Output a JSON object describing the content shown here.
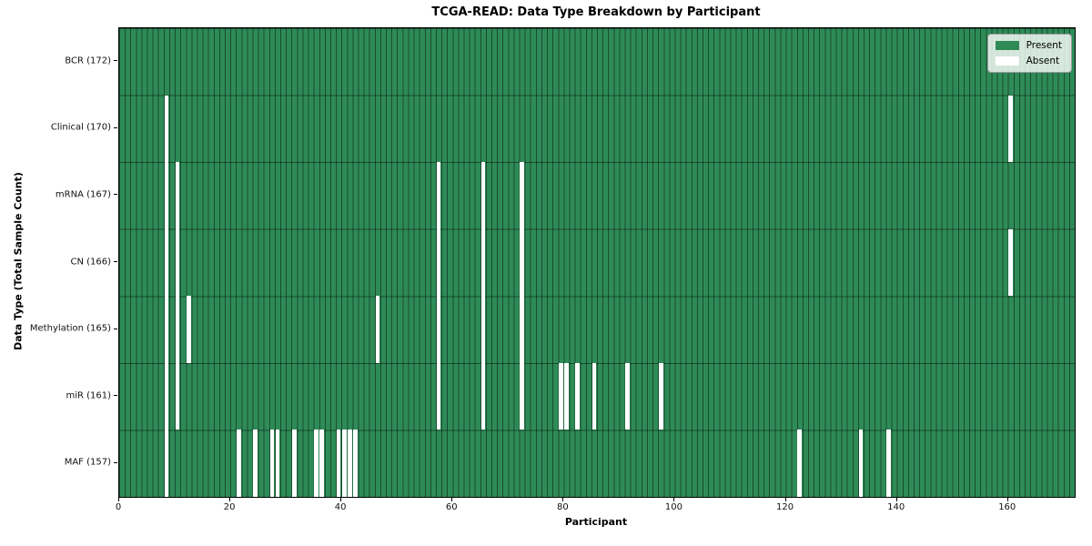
{
  "chart_data": {
    "type": "heatmap",
    "title": "TCGA-READ: Data Type Breakdown by Participant",
    "xlabel": "Participant",
    "ylabel": "Data Type (Total Sample Count)",
    "n_participants": 172,
    "x_ticks": [
      0,
      20,
      40,
      60,
      80,
      100,
      120,
      140,
      160
    ],
    "grid": true,
    "legend_position": "upper right",
    "legend": [
      {
        "label": "Present",
        "value": 1,
        "color": "#2e8b57"
      },
      {
        "label": "Absent",
        "value": 0,
        "color": "#ffffff"
      }
    ],
    "colors": {
      "present": "#2e8b57",
      "absent": "#ffffff",
      "gridline": "rgba(0,0,0,0.45)",
      "spine": "#000000"
    },
    "rows": [
      {
        "label": "BCR (172)",
        "data_type": "BCR",
        "present_count": 172,
        "absent_participants": []
      },
      {
        "label": "Clinical (170)",
        "data_type": "Clinical",
        "present_count": 170,
        "absent_participants": [
          8,
          160
        ]
      },
      {
        "label": "mRNA (167)",
        "data_type": "mRNA",
        "present_count": 167,
        "absent_participants": [
          8,
          10,
          57,
          65,
          72
        ]
      },
      {
        "label": "CN (166)",
        "data_type": "CN",
        "present_count": 166,
        "absent_participants": [
          8,
          10,
          57,
          65,
          72,
          160
        ]
      },
      {
        "label": "Methylation (165)",
        "data_type": "Methylation",
        "present_count": 165,
        "absent_participants": [
          8,
          10,
          12,
          46,
          57,
          65,
          72
        ]
      },
      {
        "label": "miR (161)",
        "data_type": "miR",
        "present_count": 161,
        "absent_participants": [
          8,
          10,
          57,
          65,
          72,
          79,
          80,
          82,
          85,
          91,
          97
        ]
      },
      {
        "label": "MAF (157)",
        "data_type": "MAF",
        "present_count": 157,
        "absent_participants": [
          8,
          21,
          24,
          27,
          28,
          31,
          35,
          36,
          39,
          40,
          41,
          42,
          122,
          133,
          138
        ]
      }
    ]
  }
}
